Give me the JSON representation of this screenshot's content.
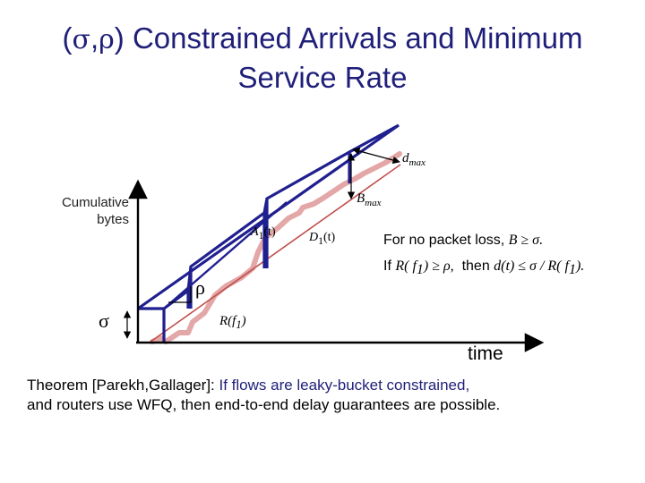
{
  "title": {
    "open_paren": "(",
    "sigma": "σ",
    "comma": ",",
    "rho": "ρ",
    "rest_line1": ") Constrained Arrivals and Minimum",
    "line2": "Service Rate"
  },
  "diagram": {
    "y_axis_label_line1": "Cumulative",
    "y_axis_label_line2": "bytes",
    "x_axis_label": "time",
    "dmax_label": "d",
    "dmax_sub": "max",
    "bmax_label": "B",
    "bmax_sub": "max",
    "a1_label": "A",
    "a1_sub": "1",
    "a1_arg": "(t)",
    "d1_label": "D",
    "d1_sub": "1",
    "d1_arg": "(t)",
    "rho_label": "ρ",
    "sigma_label": "σ",
    "rate_label": "R(f",
    "rate_sub": "1",
    "rate_close": ")",
    "colors": {
      "arrival": "#1f1f8f",
      "departure": "#e4a7a7",
      "service_line": "#c0504d",
      "axis": "#000000"
    }
  },
  "conditions": {
    "line1_text": "For no packet loss, ",
    "line1_math": "B ≥ σ.",
    "line2_if": "If ",
    "line2_cond": "R( f",
    "line2_cond_sub": "1",
    "line2_cond_rest": ") ≥ ρ,",
    "line2_then": "  then ",
    "line2_result": "d(t) ≤ σ / R( f",
    "line2_result_sub": "1",
    "line2_result_rest": ")."
  },
  "theorem": {
    "prefix": "Theorem [Parekh,Gallager]: ",
    "highlight": "If flows are leaky-bucket constrained,",
    "rest": "and routers use WFQ, then end-to-end delay guarantees are possible."
  }
}
